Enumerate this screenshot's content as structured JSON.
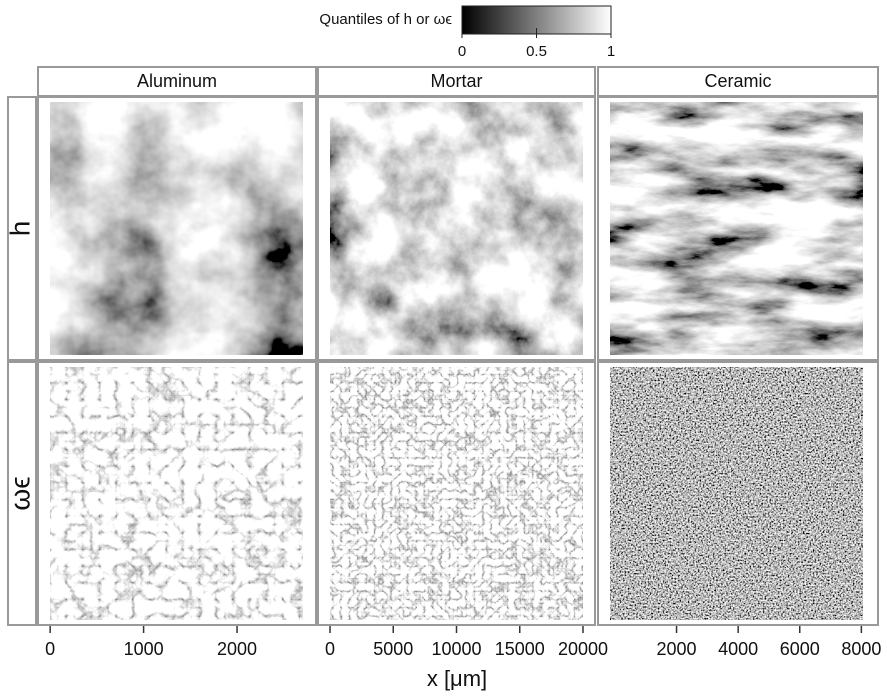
{
  "chart_data": {
    "type": "image-grid",
    "colorbar": {
      "title": "Quantiles of h or ωϵ",
      "lim": [
        0,
        1
      ],
      "ticks": [
        0,
        0.5,
        1
      ]
    },
    "rows": [
      "h",
      "ωϵ"
    ],
    "columns": [
      {
        "name": "Aluminum",
        "xlim": [
          -130,
          2845
        ],
        "xticks": [
          0,
          1000,
          2000
        ]
      },
      {
        "name": "Mortar",
        "xlim": [
          -950,
          20950
        ],
        "xticks": [
          0,
          5000,
          10000,
          15000,
          20000
        ]
      },
      {
        "name": "Ceramic",
        "xlim": [
          -550,
          8540
        ],
        "xticks": [
          2000,
          4000,
          6000,
          8000
        ]
      }
    ],
    "xlabel": "x [μm]"
  }
}
